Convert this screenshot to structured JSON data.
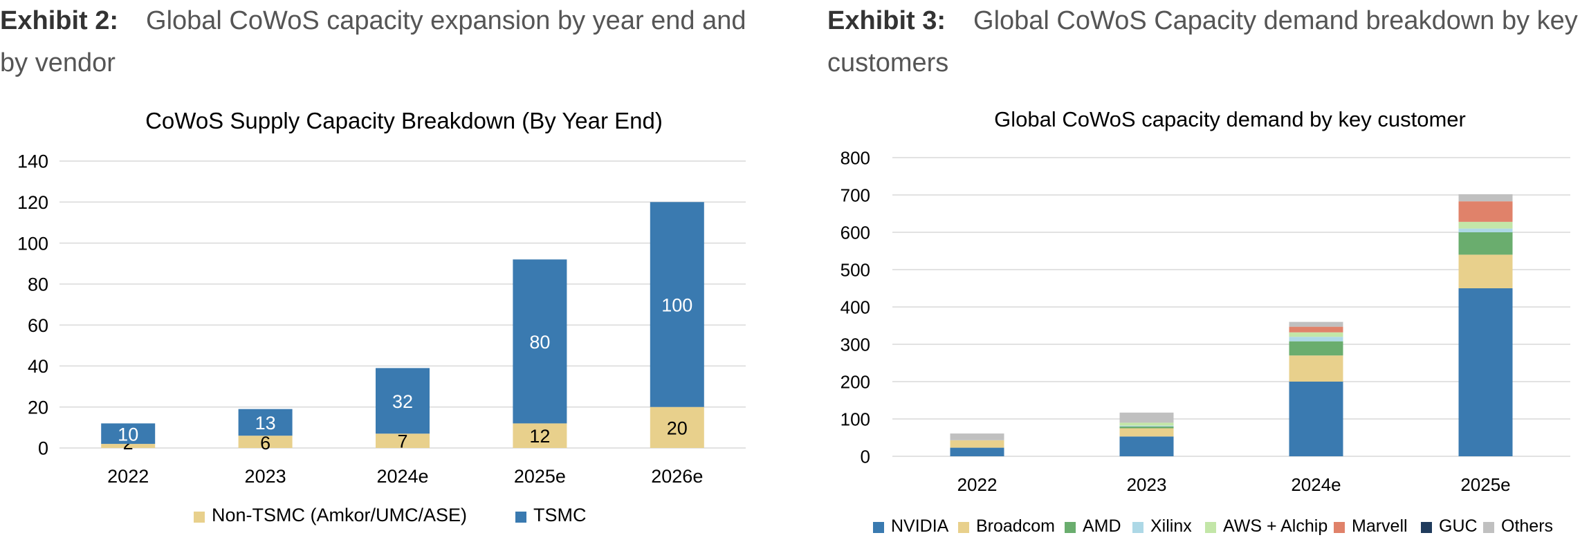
{
  "exhibits": [
    {
      "label": "Exhibit 2:",
      "caption": "Global CoWoS capacity expansion by year end and by vendor"
    },
    {
      "label": "Exhibit 3:",
      "caption": "Global CoWoS Capacity demand breakdown by key customers"
    }
  ],
  "colors": {
    "tsmc": "#3a7ab0",
    "non_tsmc": "#e8d08c",
    "grid": "#d9d9d9",
    "nvidia": "#3a7ab0",
    "broadcom": "#e8d08c",
    "amd": "#6aad6e",
    "xilinx": "#add8e6",
    "aws": "#c3e6a8",
    "marvell": "#e0826a",
    "guc": "#1f3b5c",
    "others": "#c0c0c0"
  },
  "chart_data": [
    {
      "type": "bar",
      "stacked": true,
      "title": "CoWoS Supply Capacity Breakdown (By Year End)",
      "categories": [
        "2022",
        "2023",
        "2024e",
        "2025e",
        "2026e"
      ],
      "series": [
        {
          "name": "Non-TSMC (Amkor/UMC/ASE)",
          "values": [
            2,
            6,
            7,
            12,
            20
          ],
          "color": "#e8d08c"
        },
        {
          "name": "TSMC",
          "values": [
            10,
            13,
            32,
            80,
            100
          ],
          "color": "#3a7ab0"
        }
      ],
      "ylim": [
        0,
        140
      ],
      "yticks": [
        "0",
        "20",
        "40",
        "60",
        "80",
        "100",
        "120",
        "140"
      ],
      "grid": true,
      "legend": "bottom",
      "data_labels": true
    },
    {
      "type": "bar",
      "stacked": true,
      "title": "Global CoWoS capacity demand by key customer",
      "categories": [
        "2022",
        "2023",
        "2024e",
        "2025e"
      ],
      "series": [
        {
          "name": "NVIDIA",
          "values": [
            23,
            53,
            200,
            450
          ],
          "color": "#3a7ab0"
        },
        {
          "name": "Broadcom",
          "values": [
            20,
            22,
            70,
            90
          ],
          "color": "#e8d08c"
        },
        {
          "name": "AMD",
          "values": [
            0,
            5,
            38,
            60
          ],
          "color": "#6aad6e"
        },
        {
          "name": "Xilinx",
          "values": [
            0,
            2,
            12,
            10
          ],
          "color": "#add8e6"
        },
        {
          "name": "AWS + Alchip",
          "values": [
            0,
            8,
            12,
            18
          ],
          "color": "#c3e6a8"
        },
        {
          "name": "Marvell",
          "values": [
            0,
            0,
            15,
            55
          ],
          "color": "#e0826a"
        },
        {
          "name": "GUC",
          "values": [
            0,
            0,
            0,
            0
          ],
          "color": "#1f3b5c"
        },
        {
          "name": "Others",
          "values": [
            18,
            27,
            13,
            19
          ],
          "color": "#c0c0c0"
        }
      ],
      "ylim": [
        0,
        800
      ],
      "yticks": [
        "0",
        "100",
        "200",
        "300",
        "400",
        "500",
        "600",
        "700",
        "800"
      ],
      "grid": true,
      "legend": "bottom",
      "data_labels": false
    }
  ]
}
